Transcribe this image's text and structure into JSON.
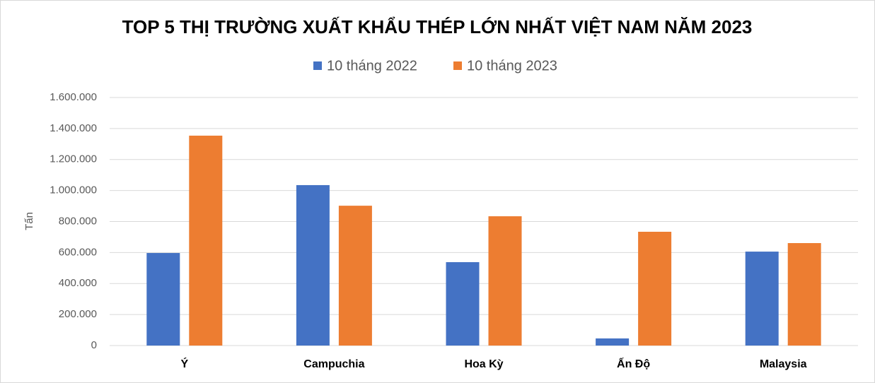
{
  "chart_data": {
    "type": "bar",
    "title": "TOP 5 THỊ TRƯỜNG XUẤT KHẨU THÉP LỚN NHẤT VIỆT NAM NĂM 2023",
    "y_label": "Tấn",
    "categories": [
      "Ý",
      "Campuchia",
      "Hoa Kỳ",
      "Ấn Độ",
      "Malaysia"
    ],
    "series": [
      {
        "name": "10 tháng 2022",
        "color": "#4472c4",
        "values": [
          597000,
          1035000,
          538000,
          46000,
          606000
        ]
      },
      {
        "name": "10 tháng 2023",
        "color": "#ed7d31",
        "values": [
          1354000,
          902000,
          834000,
          734000,
          661000
        ]
      }
    ],
    "ylim": [
      0,
      1600000
    ],
    "yticks": [
      0,
      {
        "value": 200000,
        "label": "200.000"
      },
      {
        "value": 400000,
        "label": "400.000"
      },
      {
        "value": 600000,
        "label": "600.000"
      },
      {
        "value": 800000,
        "label": "800.000"
      },
      {
        "value": 1000000,
        "label": "1.000.000"
      },
      {
        "value": 1200000,
        "label": "1.200.000"
      },
      {
        "value": 1400000,
        "label": "1.400.000"
      },
      {
        "value": 1600000,
        "label": "1.600.000"
      }
    ],
    "grid": true,
    "legend": "top"
  }
}
